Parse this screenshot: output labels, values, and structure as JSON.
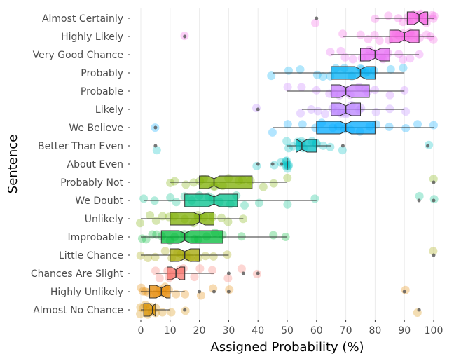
{
  "chart_data": {
    "type": "boxplot",
    "title": "",
    "xlabel": "Assigned Probability (%)",
    "ylabel": "Sentence",
    "xlim": [
      -2,
      103
    ],
    "xticks": [
      0,
      10,
      20,
      30,
      40,
      50,
      60,
      70,
      80,
      90,
      100
    ],
    "grid": true,
    "legend": "none",
    "series": [
      {
        "name": "Almost Certainly",
        "color": "#F564E3",
        "q1": 91,
        "median": 95,
        "q3": 98,
        "whisker_low": 80,
        "whisker_high": 100,
        "outliers": [
          60
        ],
        "points": [
          80,
          85,
          88,
          90,
          91,
          92,
          93,
          94,
          95,
          95,
          96,
          97,
          98,
          99,
          100,
          100,
          60
        ]
      },
      {
        "name": "Highly Likely",
        "color": "#F564E3",
        "q1": 85,
        "median": 90,
        "q3": 95,
        "whisker_low": 69,
        "whisker_high": 100,
        "outliers": [
          15
        ],
        "points": [
          69,
          75,
          78,
          80,
          82,
          85,
          87,
          88,
          90,
          90,
          92,
          93,
          95,
          97,
          99,
          100,
          15
        ]
      },
      {
        "name": "Very Good Chance",
        "color": "#E76BF3",
        "q1": 75,
        "median": 80,
        "q3": 85,
        "whisker_low": 65,
        "whisker_high": 95,
        "outliers": [],
        "points": [
          65,
          68,
          70,
          72,
          75,
          77,
          78,
          80,
          80,
          82,
          83,
          85,
          88,
          90,
          92,
          95
        ]
      },
      {
        "name": "Probably",
        "color": "#00B0F6",
        "q1": 65,
        "median": 75,
        "q3": 80,
        "whisker_low": 45,
        "whisker_high": 90,
        "outliers": [],
        "points": [
          45,
          50,
          55,
          60,
          62,
          65,
          67,
          70,
          72,
          75,
          75,
          77,
          78,
          80,
          85,
          90
        ]
      },
      {
        "name": "Probable",
        "color": "#C77CFF",
        "q1": 65,
        "median": 70,
        "q3": 78,
        "whisker_low": 50,
        "whisker_high": 90,
        "outliers": [],
        "points": [
          50,
          55,
          60,
          65,
          66,
          68,
          70,
          70,
          72,
          75,
          77,
          78,
          80,
          85,
          90
        ]
      },
      {
        "name": "Likely",
        "color": "#B983FF",
        "q1": 65,
        "median": 70,
        "q3": 75,
        "whisker_low": 55,
        "whisker_high": 90,
        "outliers": [
          40
        ],
        "points": [
          55,
          58,
          60,
          63,
          65,
          67,
          68,
          70,
          70,
          72,
          74,
          75,
          80,
          85,
          90,
          40
        ]
      },
      {
        "name": "We Believe",
        "color": "#00A9FF",
        "q1": 60,
        "median": 70,
        "q3": 80,
        "whisker_low": 45,
        "whisker_high": 100,
        "outliers": [
          5
        ],
        "points": [
          45,
          50,
          55,
          60,
          62,
          65,
          68,
          70,
          72,
          75,
          78,
          80,
          85,
          90,
          95,
          100,
          5
        ]
      },
      {
        "name": "Better Than Even",
        "color": "#00BFC4",
        "q1": 53,
        "median": 55,
        "q3": 60,
        "whisker_low": 50,
        "whisker_high": 65,
        "outliers": [
          5,
          69,
          98
        ],
        "points": [
          50,
          51,
          52,
          53,
          55,
          55,
          56,
          58,
          60,
          60,
          62,
          65,
          5,
          69,
          98
        ]
      },
      {
        "name": "About Even",
        "color": "#00BFC4",
        "q1": 50,
        "median": 50,
        "q3": 50,
        "whisker_low": 50,
        "whisker_high": 50,
        "outliers": [
          40,
          45,
          48
        ],
        "points": [
          50,
          50,
          50,
          50,
          50,
          50,
          50,
          50,
          40,
          45,
          48
        ]
      },
      {
        "name": "Probably Not",
        "color": "#7CAE00",
        "q1": 20,
        "median": 25,
        "q3": 38,
        "whisker_low": 10,
        "whisker_high": 50,
        "outliers": [
          100
        ],
        "points": [
          10,
          12,
          15,
          18,
          20,
          22,
          25,
          25,
          28,
          30,
          33,
          35,
          38,
          42,
          45,
          50,
          100
        ]
      },
      {
        "name": "We Doubt",
        "color": "#00C08B",
        "q1": 15,
        "median": 25,
        "q3": 33,
        "whisker_low": 1,
        "whisker_high": 60,
        "outliers": [
          95,
          100
        ],
        "points": [
          1,
          5,
          10,
          12,
          15,
          18,
          20,
          23,
          25,
          27,
          30,
          33,
          35,
          40,
          50,
          60,
          95,
          100
        ]
      },
      {
        "name": "Unlikely",
        "color": "#7CAE00",
        "q1": 10,
        "median": 20,
        "q3": 25,
        "whisker_low": 0,
        "whisker_high": 35,
        "outliers": [],
        "points": [
          0,
          3,
          5,
          8,
          10,
          12,
          15,
          18,
          20,
          20,
          22,
          25,
          28,
          30,
          35
        ]
      },
      {
        "name": "Improbable",
        "color": "#00BA38",
        "q1": 7,
        "median": 15,
        "q3": 28,
        "whisker_low": 0,
        "whisker_high": 50,
        "outliers": [],
        "points": [
          0,
          2,
          4,
          5,
          7,
          10,
          12,
          15,
          18,
          20,
          23,
          25,
          28,
          35,
          45,
          50
        ]
      },
      {
        "name": "Little Chance",
        "color": "#A3A500",
        "q1": 10,
        "median": 15,
        "q3": 20,
        "whisker_low": 0,
        "whisker_high": 30,
        "outliers": [
          100
        ],
        "points": [
          0,
          3,
          5,
          8,
          10,
          12,
          14,
          15,
          15,
          17,
          20,
          22,
          25,
          30,
          100
        ]
      },
      {
        "name": "Chances Are Slight",
        "color": "#F8766D",
        "q1": 9,
        "median": 12,
        "q3": 15,
        "whisker_low": 5,
        "whisker_high": 25,
        "outliers": [
          30,
          35,
          40
        ],
        "points": [
          5,
          7,
          9,
          10,
          11,
          12,
          13,
          15,
          18,
          20,
          25,
          30,
          35,
          40
        ]
      },
      {
        "name": "Highly Unlikely",
        "color": "#E58700",
        "q1": 3,
        "median": 7,
        "q3": 10,
        "whisker_low": 0,
        "whisker_high": 15,
        "outliers": [
          20,
          25,
          30,
          90
        ],
        "points": [
          0,
          1,
          2,
          3,
          5,
          6,
          7,
          8,
          10,
          12,
          15,
          20,
          25,
          30,
          90
        ]
      },
      {
        "name": "Almost No Chance",
        "color": "#D89000",
        "q1": 1,
        "median": 4,
        "q3": 5,
        "whisker_low": 0,
        "whisker_high": 10,
        "outliers": [
          15,
          95
        ],
        "points": [
          0,
          0,
          1,
          1,
          2,
          3,
          4,
          5,
          5,
          7,
          10,
          15,
          95
        ]
      }
    ]
  }
}
